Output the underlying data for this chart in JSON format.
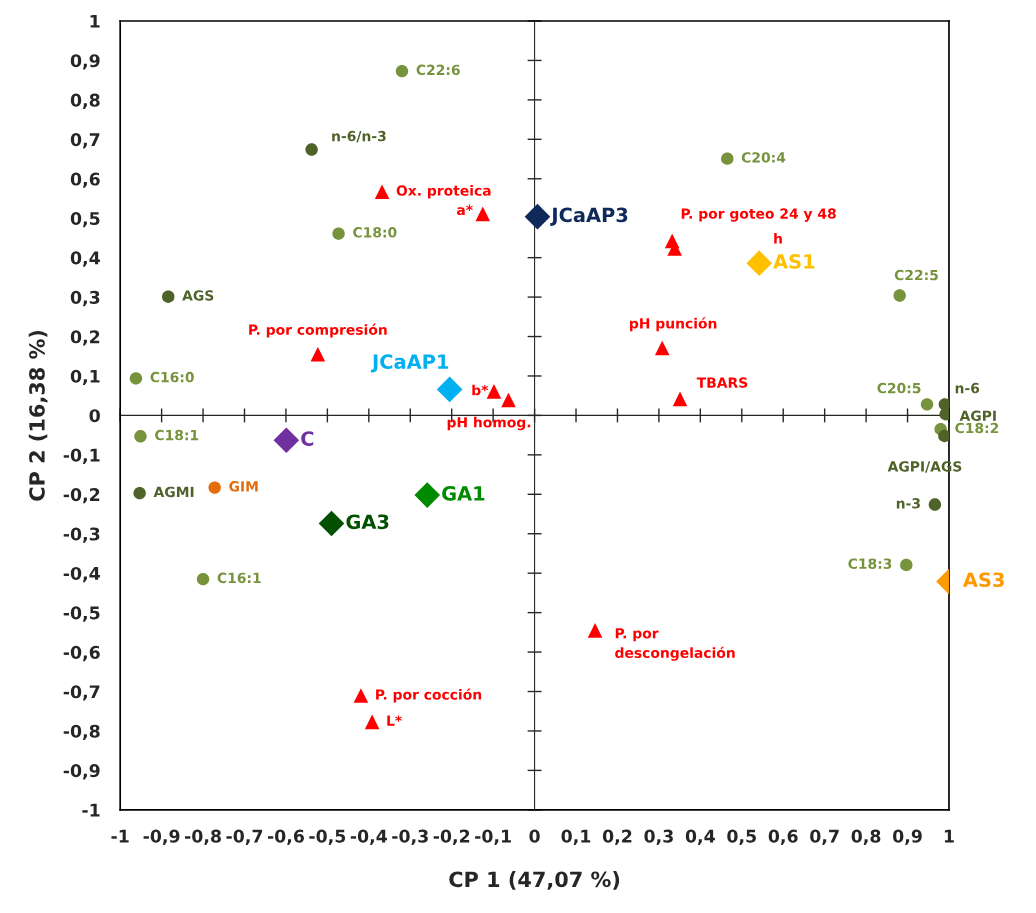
{
  "chart_data": {
    "type": "scatter",
    "xlabel": "CP 1 (47,07 %)",
    "ylabel": "CP 2 (16,38 %)",
    "xlim": [
      -1,
      1
    ],
    "ylim": [
      -1,
      1
    ],
    "xticks": [
      -1,
      {
        "value": -0.9,
        "label": "-0,9"
      },
      {
        "value": -0.8,
        "label": "-0,8"
      },
      {
        "value": -0.7,
        "label": "-0,7"
      },
      {
        "value": -0.6,
        "label": "-0,6"
      },
      {
        "value": -0.5,
        "label": "-0,5"
      },
      {
        "value": -0.4,
        "label": "-0,4"
      },
      {
        "value": -0.3,
        "label": "-0,3"
      },
      {
        "value": -0.2,
        "label": "-0,2"
      },
      {
        "value": -0.1,
        "label": "-0,1"
      },
      0,
      {
        "value": 0.1,
        "label": "0,1"
      },
      {
        "value": 0.2,
        "label": "0,2"
      },
      {
        "value": 0.3,
        "label": "0,3"
      },
      {
        "value": 0.4,
        "label": "0,4"
      },
      {
        "value": 0.5,
        "label": "0,5"
      },
      {
        "value": 0.6,
        "label": "0,6"
      },
      {
        "value": 0.7,
        "label": "0,7"
      },
      {
        "value": 0.8,
        "label": "0,8"
      },
      {
        "value": 0.9,
        "label": "0,9"
      },
      1
    ],
    "yticks": [
      -1,
      {
        "value": -0.9,
        "label": "-0,9"
      },
      {
        "value": -0.8,
        "label": "-0,8"
      },
      {
        "value": -0.7,
        "label": "-0,7"
      },
      {
        "value": -0.6,
        "label": "-0,6"
      },
      {
        "value": -0.5,
        "label": "-0,5"
      },
      {
        "value": -0.4,
        "label": "-0,4"
      },
      {
        "value": -0.3,
        "label": "-0,3"
      },
      {
        "value": -0.2,
        "label": "-0,2"
      },
      {
        "value": -0.1,
        "label": "-0,1"
      },
      0,
      {
        "value": 0.1,
        "label": "0,1"
      },
      {
        "value": 0.2,
        "label": "0,2"
      },
      {
        "value": 0.3,
        "label": "0,3"
      },
      {
        "value": 0.4,
        "label": "0,4"
      },
      {
        "value": 0.5,
        "label": "0,5"
      },
      {
        "value": 0.6,
        "label": "0,6"
      },
      {
        "value": 0.7,
        "label": "0,7"
      },
      {
        "value": 0.8,
        "label": "0,8"
      },
      {
        "value": 0.9,
        "label": "0,9"
      },
      1
    ],
    "series": [
      {
        "color": "#77933c",
        "marker": "circle",
        "x": [
          -0.32,
          -0.473,
          -0.962,
          -0.951,
          -0.8,
          0.465,
          0.881,
          0.947,
          0.98,
          0.897
        ],
        "values": [
          0.873,
          0.461,
          0.094,
          -0.053,
          -0.415,
          0.651,
          0.304,
          0.028,
          -0.035,
          -0.379
        ],
        "value_labels": [
          "C22:6",
          "C18:0",
          "C16:0",
          "C18:1",
          "C16:1",
          "C20:4",
          "C22:5",
          "C20:5",
          "C18:2",
          "C18:3"
        ]
      },
      {
        "color": "#4f6228",
        "marker": "circle",
        "x": [
          -0.538,
          -0.884,
          -0.953,
          0.99,
          0.992,
          0.989,
          0.966
        ],
        "values": [
          0.674,
          0.301,
          -0.197,
          0.028,
          0.003,
          -0.052,
          -0.226
        ],
        "value_labels": [
          "n-6/n-3",
          "AGS",
          "AGMI",
          "n-6",
          "AGPI",
          "AGPI/AGS",
          "n-3"
        ]
      },
      {
        "color": "#e46c0a",
        "marker": "circle",
        "x": [
          -0.772
        ],
        "values": [
          -0.183
        ],
        "value_labels": [
          "GIM"
        ]
      },
      {
        "color": "#ff0000",
        "marker": "triangle",
        "x": [
          -0.368,
          -0.125,
          -0.523,
          -0.098,
          -0.063,
          0.332,
          0.338,
          0.308,
          0.351,
          0.146,
          -0.419,
          -0.392
        ],
        "values": [
          0.567,
          0.511,
          0.155,
          0.061,
          0.039,
          0.442,
          0.423,
          0.171,
          0.042,
          -0.545,
          -0.71,
          -0.777
        ],
        "value_labels": [
          "Ox. proteica",
          "a*",
          "P. por compresión",
          "b*",
          "pH homog.",
          "P. por goteo 24 y 48",
          null,
          "pH punción",
          "TBARS",
          "P. por\ndescongelación",
          "P. por cocción",
          "L*"
        ]
      },
      {
        "marker": "diamond",
        "colors": [
          "#0f2a5a",
          "#ffc000",
          "#00b0f0",
          "#7030a0",
          "#008a00",
          "#005000",
          "#ff9900"
        ],
        "x": [
          0.007,
          0.542,
          -0.205,
          -0.599,
          -0.259,
          -0.49,
          1.0
        ],
        "values": [
          0.504,
          0.386,
          0.066,
          -0.063,
          -0.202,
          -0.274,
          -0.421
        ],
        "value_labels": [
          "JCaAP3",
          "AS1",
          "JCaAP1",
          "C",
          "GA1",
          "GA3",
          "AS3"
        ]
      }
    ],
    "annotations": [
      {
        "text": "h",
        "x": 0.542,
        "y": 0.386
      }
    ]
  }
}
